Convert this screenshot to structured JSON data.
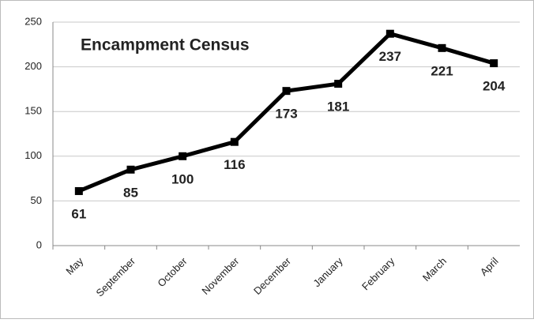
{
  "chart_data": {
    "type": "line",
    "title": "Encampment Census",
    "categories": [
      "May",
      "September",
      "October",
      "November",
      "December",
      "January",
      "February",
      "March",
      "April"
    ],
    "values": [
      61,
      85,
      100,
      116,
      173,
      181,
      237,
      221,
      204
    ],
    "color": "#000000",
    "ylim": [
      0,
      250
    ],
    "yticks": [
      0,
      50,
      100,
      150,
      200,
      250
    ],
    "grid": true
  }
}
